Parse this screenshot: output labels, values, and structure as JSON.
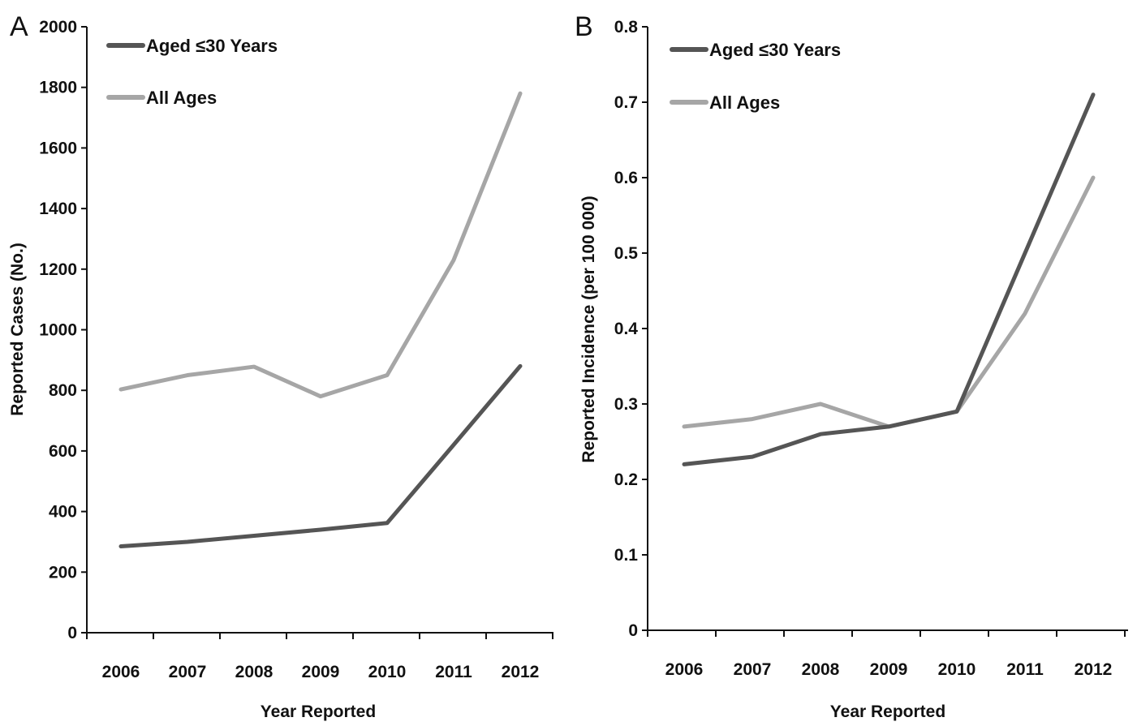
{
  "chart_data": [
    {
      "panel": "A",
      "type": "line",
      "x": [
        2006,
        2007,
        2008,
        2009,
        2010,
        2011,
        2012
      ],
      "x_tick_labels": [
        "2006",
        "2007",
        "2008",
        "2009",
        "2010",
        "2011",
        "2012"
      ],
      "xlabel": "Year Reported",
      "ylabel": "Reported Cases (No.)",
      "ylim": [
        0,
        2000
      ],
      "y_ticks": [
        0,
        200,
        400,
        600,
        800,
        1000,
        1200,
        1400,
        1600,
        1800,
        2000
      ],
      "y_tick_labels": [
        "0",
        "200",
        "400",
        "600",
        "800",
        "1000",
        "1200",
        "1400",
        "1600",
        "1800",
        "2000"
      ],
      "grid": false,
      "legend_position": "top-left",
      "series": [
        {
          "name": "Aged ≤30 Years",
          "color": "#555555",
          "values": [
            285,
            300,
            320,
            340,
            362,
            620,
            880
          ]
        },
        {
          "name": "All Ages",
          "color": "#a6a6a6",
          "values": [
            803,
            850,
            878,
            780,
            850,
            1230,
            1780
          ]
        }
      ]
    },
    {
      "panel": "B",
      "type": "line",
      "x": [
        2006,
        2007,
        2008,
        2009,
        2010,
        2011,
        2012
      ],
      "x_tick_labels": [
        "2006",
        "2007",
        "2008",
        "2009",
        "2010",
        "2011",
        "2012"
      ],
      "xlabel": "Year Reported",
      "ylabel": "Reported Incidence (per 100 000)",
      "ylim": [
        0,
        0.8
      ],
      "y_ticks": [
        0,
        0.1,
        0.2,
        0.3,
        0.4,
        0.5,
        0.6,
        0.7,
        0.8
      ],
      "y_tick_labels": [
        "0",
        "0.1",
        "0.2",
        "0.3",
        "0.4",
        "0.5",
        "0.6",
        "0.7",
        "0.8"
      ],
      "grid": false,
      "legend_position": "top-left",
      "series": [
        {
          "name": "Aged ≤30 Years",
          "color": "#555555",
          "values": [
            0.22,
            0.23,
            0.26,
            0.27,
            0.29,
            0.5,
            0.71
          ]
        },
        {
          "name": "All Ages",
          "color": "#a6a6a6",
          "values": [
            0.27,
            0.28,
            0.3,
            0.27,
            0.29,
            0.42,
            0.6
          ]
        }
      ]
    }
  ]
}
